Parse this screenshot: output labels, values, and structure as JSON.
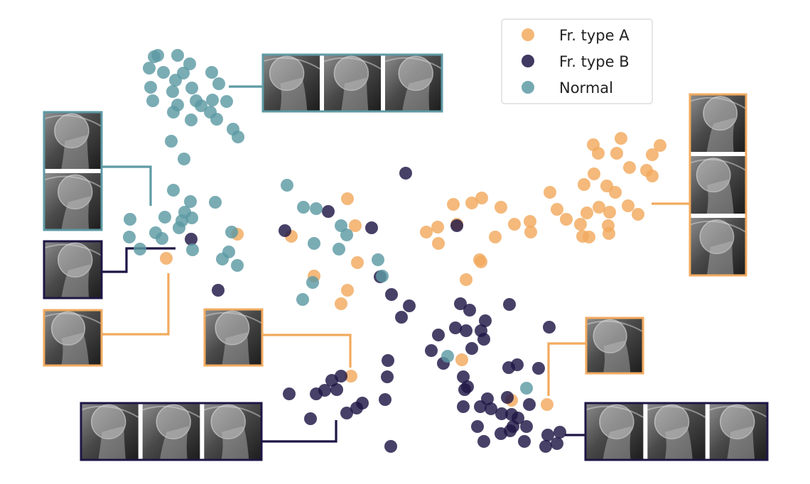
{
  "chart_data": {
    "type": "scatter",
    "title": "",
    "xlabel": "",
    "ylabel": "",
    "grid": false,
    "axes_visible": false,
    "legend_position": "top-center",
    "series": [
      {
        "name": "Fr. type A",
        "color": "#f2aa5e",
        "points": [
          [
            835,
            204
          ],
          [
            874,
            195
          ],
          [
            929,
            205
          ],
          [
            842,
            216
          ],
          [
            868,
            216
          ],
          [
            918,
            218
          ],
          [
            886,
            236
          ],
          [
            910,
            240
          ],
          [
            836,
            245
          ],
          [
            918,
            248
          ],
          [
            822,
            260
          ],
          [
            854,
            262
          ],
          [
            774,
            271
          ],
          [
            866,
            271
          ],
          [
            638,
            288
          ],
          [
            664,
            286
          ],
          [
            678,
            279
          ],
          [
            705,
            292
          ],
          [
            843,
            292
          ],
          [
            884,
            290
          ],
          [
            616,
            320
          ],
          [
            600,
            327
          ],
          [
            643,
            316
          ],
          [
            724,
            316
          ],
          [
            746,
            312
          ],
          [
            784,
            295
          ],
          [
            797,
            309
          ],
          [
            826,
            300
          ],
          [
            858,
            299
          ],
          [
            898,
            302
          ],
          [
            817,
            316
          ],
          [
            856,
            318
          ],
          [
            617,
            343
          ],
          [
            697,
            334
          ],
          [
            747,
            327
          ],
          [
            820,
            333
          ],
          [
            829,
            334
          ],
          [
            857,
            329
          ],
          [
            675,
            366
          ],
          [
            677,
            369
          ],
          [
            656,
            394
          ],
          [
            489,
            280
          ],
          [
            500,
            318
          ],
          [
            410,
            333
          ],
          [
            334,
            330
          ],
          [
            503,
            370
          ],
          [
            442,
            389
          ],
          [
            489,
            409
          ],
          [
            480,
            428
          ],
          [
            234,
            364
          ],
          [
            650,
            507
          ],
          [
            720,
            564
          ],
          [
            770,
            570
          ],
          [
            494,
            530
          ]
        ]
      },
      {
        "name": "Fr. type B",
        "color": "#1e1645",
        "points": [
          [
            571,
            244
          ],
          [
            462,
            298
          ],
          [
            401,
            325
          ],
          [
            523,
            321
          ],
          [
            643,
            318
          ],
          [
            269,
            337
          ],
          [
            535,
            390
          ],
          [
            307,
            409
          ],
          [
            551,
            415
          ],
          [
            576,
            431
          ],
          [
            565,
            447
          ],
          [
            648,
            428
          ],
          [
            661,
            437
          ],
          [
            717,
            429
          ],
          [
            617,
            472
          ],
          [
            641,
            462
          ],
          [
            656,
            466
          ],
          [
            677,
            466
          ],
          [
            683,
            452
          ],
          [
            664,
            491
          ],
          [
            681,
            478
          ],
          [
            773,
            461
          ],
          [
            607,
            494
          ],
          [
            546,
            508
          ],
          [
            624,
            512
          ],
          [
            716,
            518
          ],
          [
            728,
            514
          ],
          [
            758,
            519
          ],
          [
            545,
            531
          ],
          [
            652,
            531
          ],
          [
            467,
            536
          ],
          [
            480,
            530
          ],
          [
            407,
            555
          ],
          [
            445,
            555
          ],
          [
            457,
            550
          ],
          [
            474,
            549
          ],
          [
            542,
            563
          ],
          [
            510,
            568
          ],
          [
            502,
            575
          ],
          [
            488,
            582
          ],
          [
            654,
            549
          ],
          [
            658,
            545
          ],
          [
            686,
            562
          ],
          [
            714,
            560
          ],
          [
            652,
            573
          ],
          [
            676,
            573
          ],
          [
            691,
            576
          ],
          [
            745,
            570
          ],
          [
            720,
            584
          ],
          [
            706,
            583
          ],
          [
            729,
            589
          ],
          [
            437,
            590
          ],
          [
            741,
            601
          ],
          [
            672,
            601
          ],
          [
            705,
            611
          ],
          [
            722,
            601
          ],
          [
            718,
            607
          ],
          [
            771,
            613
          ],
          [
            788,
            609
          ],
          [
            784,
            625
          ],
          [
            768,
            629
          ],
          [
            738,
            622
          ],
          [
            681,
            622
          ],
          [
            550,
            629
          ]
        ]
      },
      {
        "name": "Normal",
        "color": "#5d9aa4",
        "points": [
          [
            222,
            78
          ],
          [
            250,
            78
          ],
          [
            217,
            80
          ],
          [
            267,
            90
          ],
          [
            210,
            96
          ],
          [
            230,
            102
          ],
          [
            258,
            103
          ],
          [
            247,
            113
          ],
          [
            298,
            102
          ],
          [
            212,
            123
          ],
          [
            243,
            129
          ],
          [
            270,
            124
          ],
          [
            308,
            118
          ],
          [
            276,
            142
          ],
          [
            299,
            141
          ],
          [
            319,
            143
          ],
          [
            215,
            142
          ],
          [
            250,
            148
          ],
          [
            283,
            149
          ],
          [
            296,
            158
          ],
          [
            244,
            158
          ],
          [
            269,
            169
          ],
          [
            305,
            168
          ],
          [
            328,
            182
          ],
          [
            335,
            193
          ],
          [
            241,
            199
          ],
          [
            259,
            224
          ],
          [
            404,
            261
          ],
          [
            244,
            268
          ],
          [
            268,
            284
          ],
          [
            303,
            285
          ],
          [
            427,
            292
          ],
          [
            445,
            294
          ],
          [
            260,
            299
          ],
          [
            232,
            306
          ],
          [
            256,
            311
          ],
          [
            270,
            307
          ],
          [
            183,
            309
          ],
          [
            252,
            321
          ],
          [
            326,
            327
          ],
          [
            480,
            318
          ],
          [
            488,
            331
          ],
          [
            182,
            334
          ],
          [
            219,
            328
          ],
          [
            228,
            336
          ],
          [
            442,
            343
          ],
          [
            197,
            351
          ],
          [
            271,
            352
          ],
          [
            322,
            355
          ],
          [
            313,
            365
          ],
          [
            477,
            351
          ],
          [
            334,
            374
          ],
          [
            532,
            366
          ],
          [
            538,
            389
          ],
          [
            440,
            398
          ],
          [
            426,
            422
          ],
          [
            630,
            502
          ],
          [
            741,
            547
          ]
        ]
      }
    ],
    "thumbnails": [
      {
        "group": "Normal",
        "images": 3
      },
      {
        "group": "Normal",
        "images": 2
      },
      {
        "group": "Fr. type B",
        "images": 1
      },
      {
        "group": "Fr. type A",
        "images": 1
      },
      {
        "group": "Fr. type A",
        "images": 1
      },
      {
        "group": "Fr. type A",
        "images": 3
      },
      {
        "group": "Fr. type A",
        "images": 1
      },
      {
        "group": "Fr. type B",
        "images": 3
      },
      {
        "group": "Fr. type B",
        "images": 3
      }
    ]
  }
}
